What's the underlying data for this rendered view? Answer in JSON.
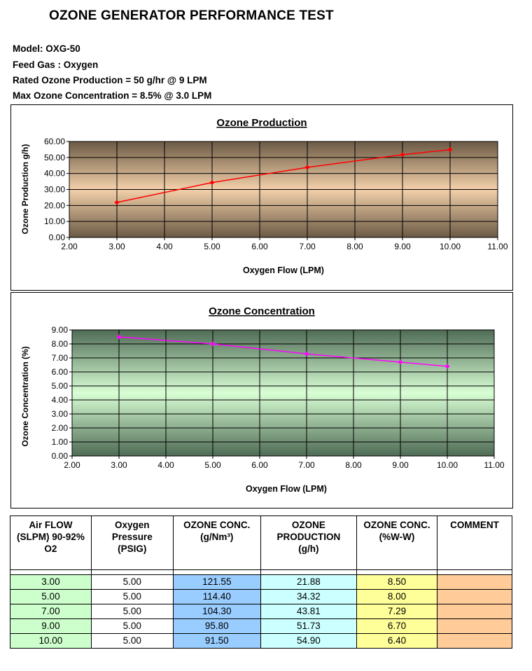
{
  "header": {
    "title": "OZONE GENERATOR PERFORMANCE TEST",
    "model": "Model: OXG-50",
    "feed_gas": "Feed Gas :  Oxygen",
    "rated": "Rated Ozone Production = 50 g/hr @ 9 LPM",
    "max_conc": "Max Ozone Concentration = 8.5% @ 3.0 LPM"
  },
  "chart_data": [
    {
      "type": "line",
      "title": "Ozone Production",
      "xlabel": "Oxygen Flow (LPM)",
      "ylabel": "Ozone Production g/h)",
      "xlim": [
        2,
        11
      ],
      "ylim": [
        0,
        60
      ],
      "xticks": [
        "2.00",
        "3.00",
        "4.00",
        "5.00",
        "6.00",
        "7.00",
        "8.00",
        "9.00",
        "10.00",
        "11.00"
      ],
      "yticks": [
        "0.00",
        "10.00",
        "20.00",
        "30.00",
        "40.00",
        "50.00",
        "60.00"
      ],
      "grid": true,
      "line_color": "#ff0000",
      "x": [
        3,
        5,
        7,
        9,
        10
      ],
      "values": [
        21.88,
        34.32,
        43.81,
        51.73,
        54.9
      ]
    },
    {
      "type": "line",
      "title": "Ozone Concentration",
      "xlabel": "Oxygen Flow (LPM)",
      "ylabel": "Ozone Concentration (%)",
      "xlim": [
        2,
        11
      ],
      "ylim": [
        0,
        9
      ],
      "xticks": [
        "2.00",
        "3.00",
        "4.00",
        "5.00",
        "6.00",
        "7.00",
        "8.00",
        "9.00",
        "10.00",
        "11.00"
      ],
      "yticks": [
        "0.00",
        "1.00",
        "2.00",
        "3.00",
        "4.00",
        "5.00",
        "6.00",
        "7.00",
        "8.00",
        "9.00"
      ],
      "grid": true,
      "line_color": "#ff00ff",
      "x": [
        3,
        5,
        7,
        9,
        10
      ],
      "values": [
        8.5,
        8.0,
        7.29,
        6.7,
        6.4
      ]
    }
  ],
  "table": {
    "headers": [
      [
        "Air FLOW",
        "(SLPM) 90-92%",
        "O2"
      ],
      [
        "Oxygen",
        "Pressure",
        "(PSIG)"
      ],
      [
        "OZONE CONC.",
        "(g/Nm³)"
      ],
      [
        "OZONE",
        "PRODUCTION",
        "(g/h)"
      ],
      [
        "OZONE CONC.",
        "(%W-W)"
      ],
      [
        "COMMENT"
      ]
    ],
    "column_colors": [
      "#ccffcc",
      "#ffffff",
      "#99ccff",
      "#ccffff",
      "#ffff99",
      "#ffcc99"
    ],
    "rows": [
      [
        "3.00",
        "5.00",
        "121.55",
        "21.88",
        "8.50",
        ""
      ],
      [
        "5.00",
        "5.00",
        "114.40",
        "34.32",
        "8.00",
        ""
      ],
      [
        "7.00",
        "5.00",
        "104.30",
        "43.81",
        "7.29",
        ""
      ],
      [
        "9.00",
        "5.00",
        "95.80",
        "51.73",
        "6.70",
        ""
      ],
      [
        "10.00",
        "5.00",
        "91.50",
        "54.90",
        "6.40",
        ""
      ]
    ]
  }
}
